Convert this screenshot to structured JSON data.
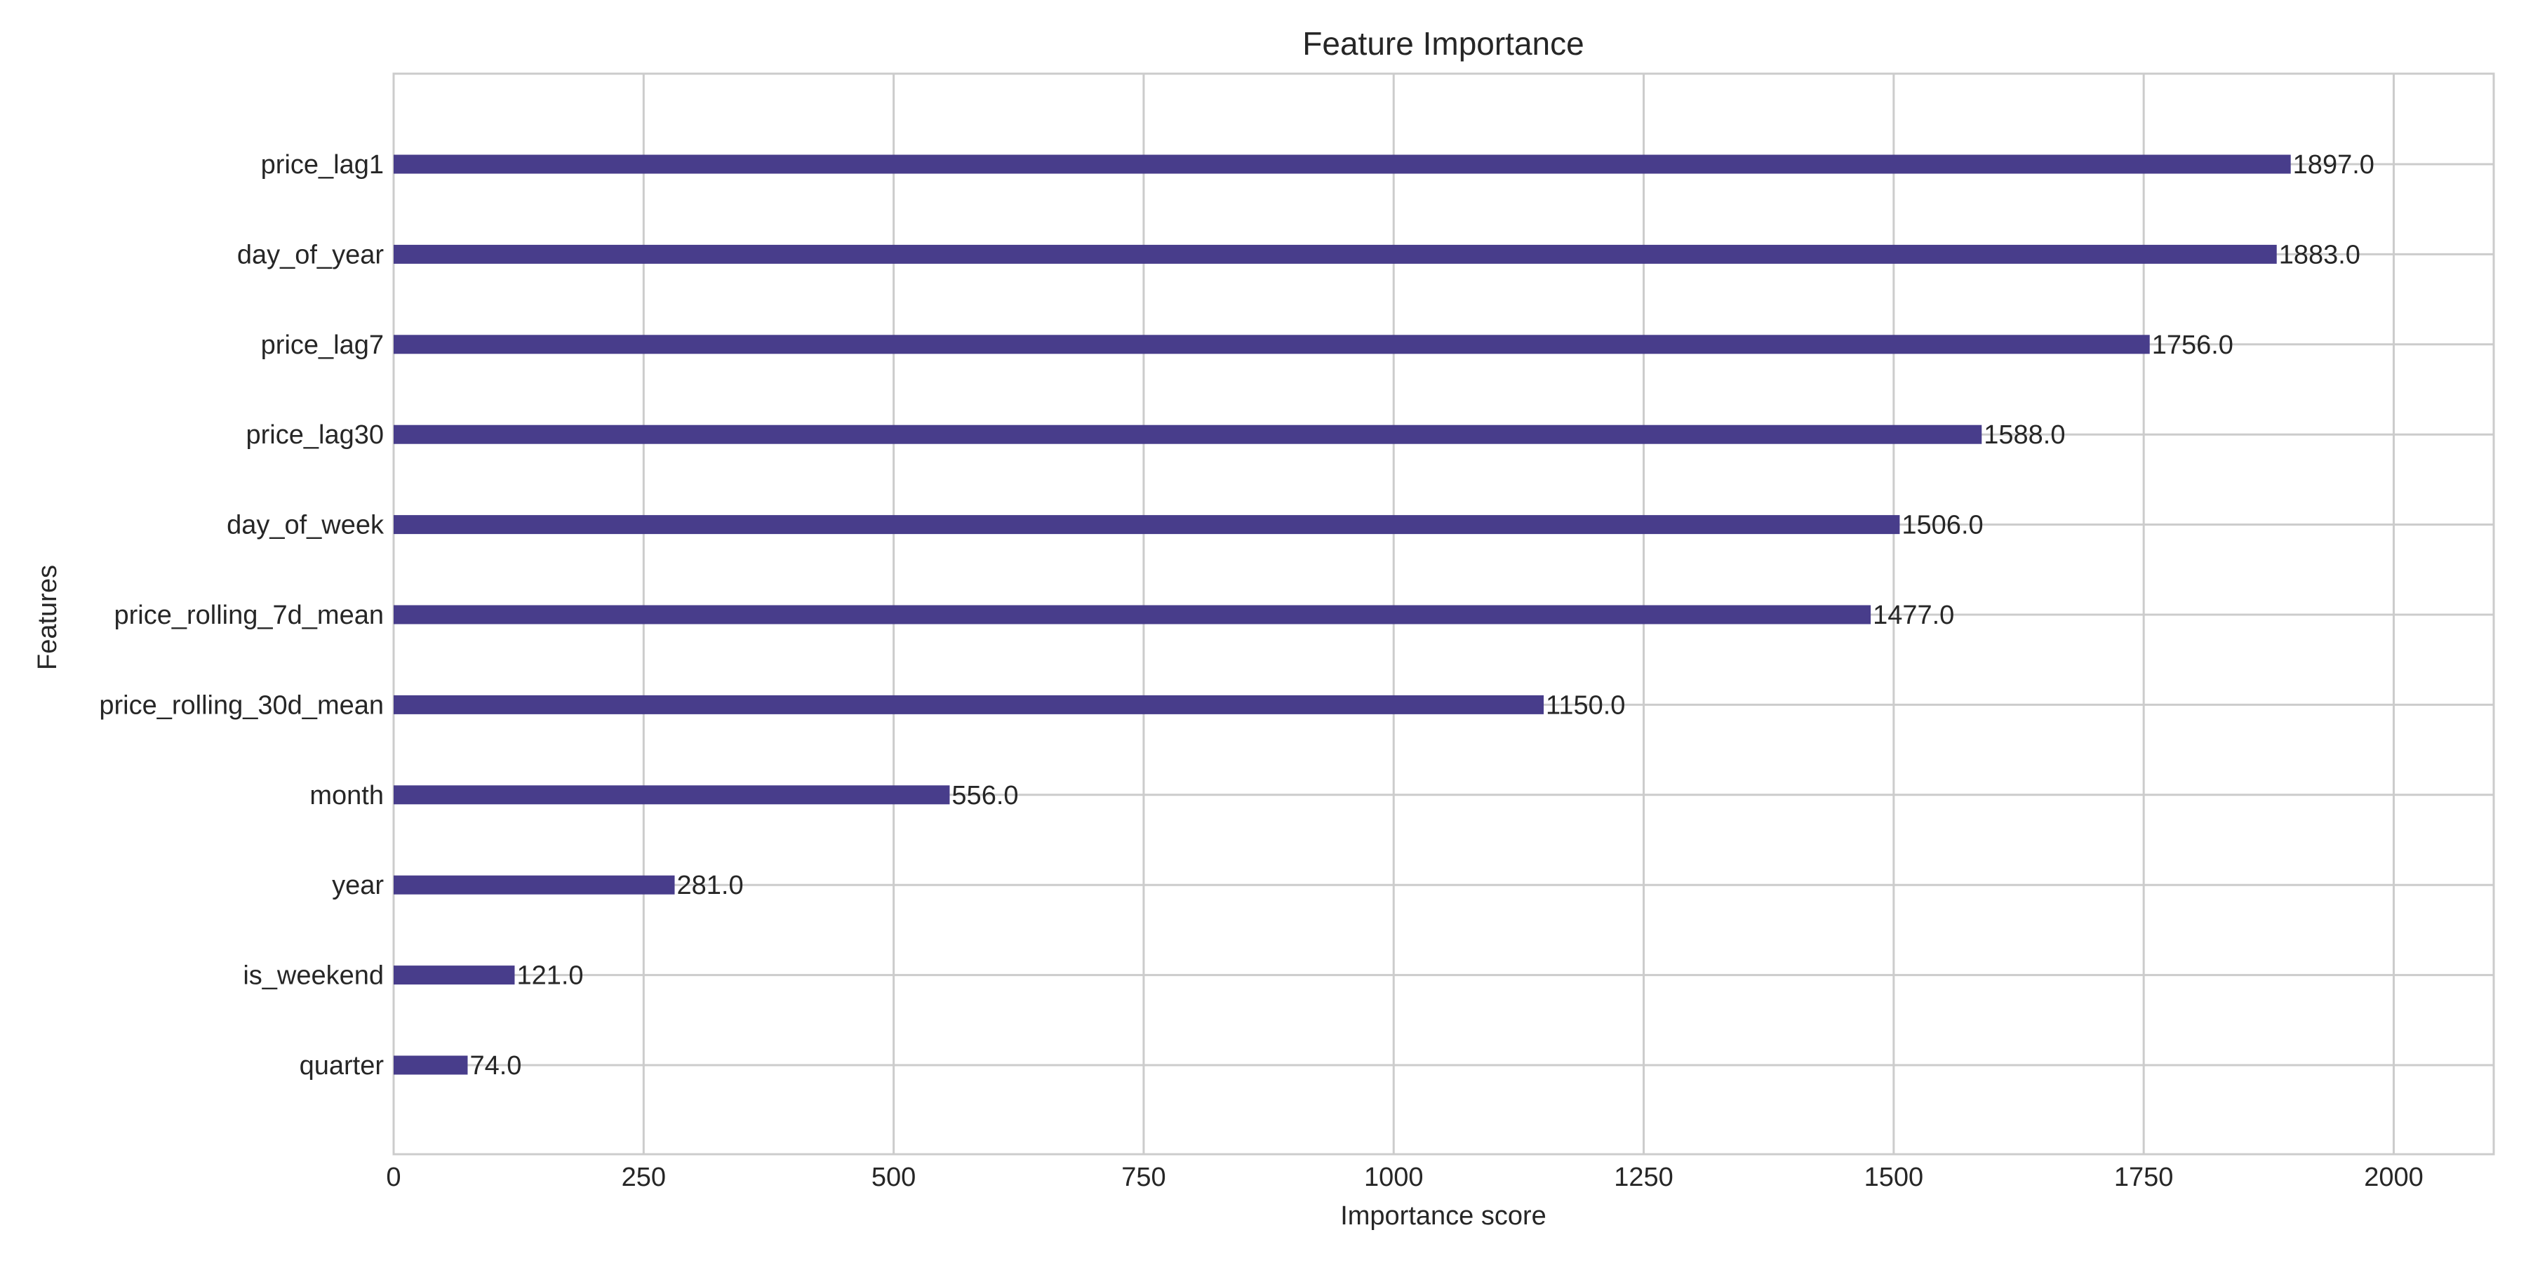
{
  "chart_data": {
    "type": "bar",
    "orientation": "horizontal",
    "title": "Feature Importance",
    "xlabel": "Importance score",
    "ylabel": "Features",
    "xlim": [
      0,
      2100
    ],
    "xticks": [
      0,
      250,
      500,
      750,
      1000,
      1250,
      1500,
      1750,
      2000
    ],
    "grid": true,
    "bar_color": "#483D8B",
    "categories": [
      "price_lag1",
      "day_of_year",
      "price_lag7",
      "price_lag30",
      "day_of_week",
      "price_rolling_7d_mean",
      "price_rolling_30d_mean",
      "month",
      "year",
      "is_weekend",
      "quarter"
    ],
    "values": [
      1897.0,
      1883.0,
      1756.0,
      1588.0,
      1506.0,
      1477.0,
      1150.0,
      556.0,
      281.0,
      121.0,
      74.0
    ],
    "data_labels": [
      "1897.0",
      "1883.0",
      "1756.0",
      "1588.0",
      "1506.0",
      "1477.0",
      "1150.0",
      "556.0",
      "281.0",
      "121.0",
      "74.0"
    ]
  }
}
